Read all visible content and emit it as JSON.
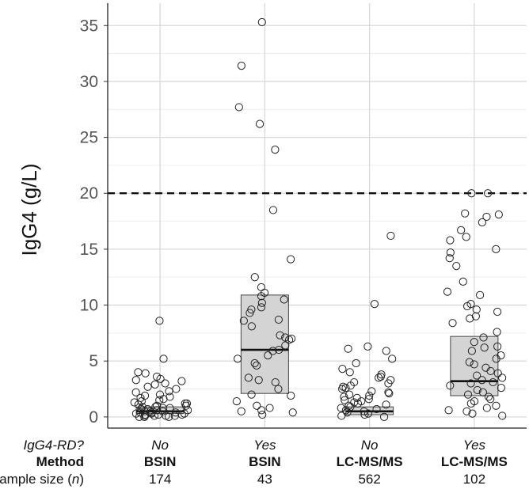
{
  "chart_data": {
    "type": "box",
    "ylabel": "IgG4 (g/L)",
    "ylim": [
      -1,
      37
    ],
    "yticks": [
      0,
      5,
      10,
      15,
      20,
      25,
      30,
      35
    ],
    "grid": true,
    "reference_line": {
      "y": 20,
      "style": "dashed"
    },
    "row_headers": {
      "igg4rd": "IgG4-RD?",
      "method": "Method",
      "sample_size_prefix": "Sample size (",
      "sample_size_n": "n",
      "sample_size_suffix": ")"
    },
    "groups": [
      {
        "igg4rd": "No",
        "method": "BSIN",
        "n": "174",
        "box": {
          "q1": 0.3,
          "median": 0.5,
          "q3": 0.9
        },
        "points": [
          8.6,
          5.2,
          4.0,
          3.9,
          3.6,
          3.4,
          3.3,
          3.2,
          3.0,
          2.9,
          2.7,
          2.5,
          2.3,
          2.2,
          2.0,
          1.9,
          1.8,
          1.7,
          1.6,
          1.5,
          1.4,
          1.3,
          1.2,
          1.2,
          1.1,
          1.0,
          1.0,
          0.9,
          0.9,
          0.8,
          0.8,
          0.7,
          0.7,
          0.6,
          0.6,
          0.5,
          0.5,
          0.5,
          0.4,
          0.4,
          0.4,
          0.3,
          0.3,
          0.3,
          0.2,
          0.2,
          0.2,
          0.1,
          0.1,
          0.1,
          0.1,
          0.0,
          0.0,
          0.0
        ]
      },
      {
        "igg4rd": "Yes",
        "method": "BSIN",
        "n": "43",
        "box": {
          "q1": 2.1,
          "median": 6.0,
          "q3": 10.9
        },
        "points": [
          35.3,
          31.4,
          27.7,
          26.2,
          23.9,
          18.5,
          14.1,
          12.5,
          11.6,
          11.1,
          10.8,
          10.5,
          10.2,
          9.8,
          9.6,
          9.3,
          8.7,
          8.6,
          8.1,
          7.3,
          7.1,
          7.0,
          6.9,
          6.4,
          6.0,
          5.9,
          5.5,
          5.2,
          4.8,
          4.6,
          3.5,
          3.3,
          3.1,
          2.5,
          2.0,
          1.9,
          1.4,
          1.0,
          0.8,
          0.6,
          0.5,
          0.4,
          0.2
        ]
      },
      {
        "igg4rd": "No",
        "method": "LC-MS/MS",
        "n": "562",
        "box": {
          "q1": 0.2,
          "median": 0.5,
          "q3": 0.9
        },
        "points": [
          16.2,
          10.1,
          6.3,
          6.1,
          5.9,
          5.2,
          4.8,
          4.3,
          4.0,
          3.8,
          3.6,
          3.5,
          3.3,
          3.1,
          3.0,
          2.8,
          2.7,
          2.6,
          2.5,
          2.3,
          2.2,
          2.1,
          2.0,
          1.9,
          1.8,
          1.7,
          1.6,
          1.5,
          1.4,
          1.3,
          1.2,
          1.1,
          1.0,
          0.9,
          0.8,
          0.7,
          0.6,
          0.5,
          0.4,
          0.3,
          0.2,
          0.1,
          0.0
        ]
      },
      {
        "igg4rd": "Yes",
        "method": "LC-MS/MS",
        "n": "102",
        "box": {
          "q1": 1.9,
          "median": 3.2,
          "q3": 7.2
        },
        "points": [
          20.0,
          20.0,
          18.2,
          18.1,
          17.9,
          17.4,
          16.7,
          16.1,
          15.8,
          15.0,
          14.7,
          14.2,
          13.5,
          12.1,
          11.2,
          10.9,
          10.1,
          9.9,
          9.6,
          9.4,
          9.0,
          8.8,
          8.4,
          7.6,
          7.1,
          6.7,
          6.3,
          6.2,
          5.9,
          5.5,
          5.2,
          4.9,
          4.7,
          4.4,
          4.1,
          3.9,
          3.7,
          3.5,
          3.3,
          3.1,
          3.0,
          2.8,
          2.6,
          2.4,
          2.2,
          2.0,
          1.8,
          1.6,
          1.4,
          1.2,
          1.0,
          0.8,
          0.6,
          0.5,
          0.3,
          0.1
        ]
      }
    ]
  }
}
